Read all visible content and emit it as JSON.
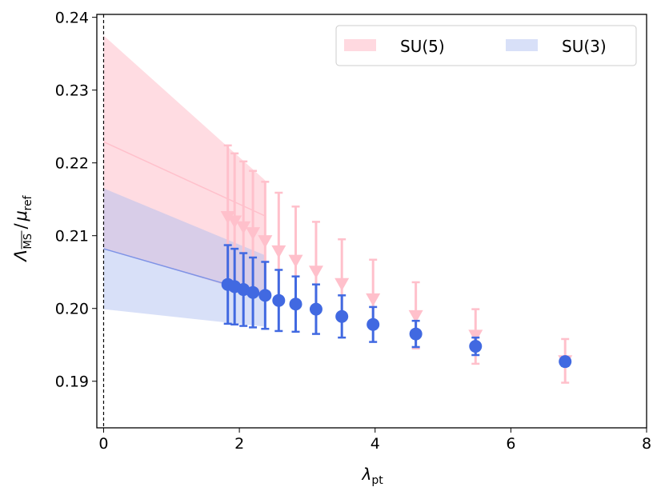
{
  "chart_data": {
    "type": "scatter",
    "xlabel": "λ_pt",
    "ylabel": "Λ_MS/μ_ref",
    "xlim": [
      -0.1,
      8
    ],
    "ylim": [
      0.1836,
      0.2404
    ],
    "xticks": [
      0,
      2,
      4,
      6,
      8
    ],
    "xtick_labels": [
      "0",
      "2",
      "4",
      "6",
      "8"
    ],
    "yticks": [
      0.19,
      0.2,
      0.21,
      0.22,
      0.23,
      0.24
    ],
    "ytick_labels": [
      "0.19",
      "0.20",
      "0.21",
      "0.22",
      "0.23",
      "0.24"
    ],
    "legend": {
      "placement": "top-right",
      "entries": [
        "SU(5)",
        "SU(3)"
      ]
    },
    "vline_x": 0,
    "series": [
      {
        "name": "SU(5)",
        "color": "#ffc0cb",
        "marker": "triangle-down",
        "x": [
          1.83,
          1.93,
          2.06,
          2.2,
          2.38,
          2.58,
          2.83,
          3.13,
          3.51,
          3.97,
          4.6,
          5.48,
          6.8
        ],
        "y": [
          0.2126,
          0.212,
          0.2112,
          0.2104,
          0.2093,
          0.2079,
          0.2066,
          0.2051,
          0.2034,
          0.2013,
          0.199,
          0.1963,
          0.1928
        ],
        "y_upper": [
          0.2224,
          0.2213,
          0.2202,
          0.2189,
          0.2174,
          0.2159,
          0.214,
          0.2119,
          0.2095,
          0.2067,
          0.2036,
          0.1999,
          0.1958
        ],
        "y_lower": [
          0.203,
          0.2027,
          0.2023,
          0.2019,
          0.2015,
          0.2007,
          0.2002,
          0.1994,
          0.1986,
          0.1975,
          0.1945,
          0.1924,
          0.1898
        ],
        "band": {
          "x": [
            0,
            2.38
          ],
          "upper": [
            0.2375,
            0.2176
          ],
          "lower": [
            0.2083,
            0.2015
          ],
          "central": [
            0.2229,
            0.2127
          ]
        }
      },
      {
        "name": "SU(3)",
        "color": "#4169e1",
        "band_color": "#d6def7",
        "marker": "circle",
        "x": [
          1.83,
          1.93,
          2.06,
          2.2,
          2.38,
          2.58,
          2.83,
          3.13,
          3.51,
          3.97,
          4.6,
          5.48,
          6.8
        ],
        "y": [
          0.2033,
          0.203,
          0.2026,
          0.2022,
          0.2018,
          0.2011,
          0.2006,
          0.1999,
          0.1989,
          0.1978,
          0.1965,
          0.1948,
          0.1927
        ],
        "yerr": [
          0.0054,
          0.0052,
          0.005,
          0.0048,
          0.0046,
          0.0042,
          0.0038,
          0.0034,
          0.0029,
          0.0024,
          0.0018,
          0.0012,
          0.0006
        ],
        "band": {
          "x": [
            0,
            2.38
          ],
          "upper": [
            0.2165,
            0.2073
          ],
          "lower": [
            0.1999,
            0.1975
          ],
          "central": [
            0.2082,
            0.2018
          ]
        }
      }
    ]
  }
}
